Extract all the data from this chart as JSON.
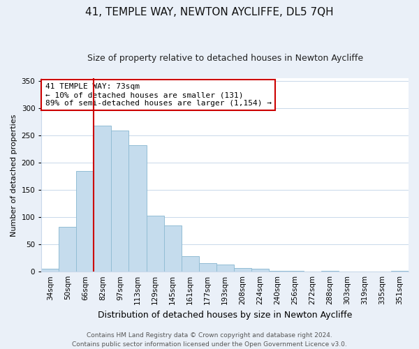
{
  "title": "41, TEMPLE WAY, NEWTON AYCLIFFE, DL5 7QH",
  "subtitle": "Size of property relative to detached houses in Newton Aycliffe",
  "xlabel": "Distribution of detached houses by size in Newton Aycliffe",
  "ylabel": "Number of detached properties",
  "bar_labels": [
    "34sqm",
    "50sqm",
    "66sqm",
    "82sqm",
    "97sqm",
    "113sqm",
    "129sqm",
    "145sqm",
    "161sqm",
    "177sqm",
    "193sqm",
    "208sqm",
    "224sqm",
    "240sqm",
    "256sqm",
    "272sqm",
    "288sqm",
    "303sqm",
    "319sqm",
    "335sqm",
    "351sqm"
  ],
  "bar_values": [
    6,
    82,
    185,
    268,
    260,
    233,
    103,
    85,
    28,
    16,
    13,
    7,
    5,
    2,
    2,
    0,
    2,
    0,
    0,
    0,
    2
  ],
  "bar_color": "#c5dced",
  "bar_edge_color": "#92bdd4",
  "vline_x": 2.5,
  "vline_color": "#cc0000",
  "ylim": [
    0,
    355
  ],
  "yticks": [
    0,
    50,
    100,
    150,
    200,
    250,
    300,
    350
  ],
  "annotation_text": "41 TEMPLE WAY: 73sqm\n← 10% of detached houses are smaller (131)\n89% of semi-detached houses are larger (1,154) →",
  "annotation_box_color": "white",
  "annotation_box_edge": "#cc0000",
  "footer_line1": "Contains HM Land Registry data © Crown copyright and database right 2024.",
  "footer_line2": "Contains public sector information licensed under the Open Government Licence v3.0.",
  "bg_color": "#eaf0f8",
  "plot_bg_color": "white",
  "grid_color": "#c8d8ea",
  "title_fontsize": 11,
  "subtitle_fontsize": 9,
  "xlabel_fontsize": 9,
  "ylabel_fontsize": 8,
  "tick_fontsize": 7.5,
  "annotation_fontsize": 8,
  "footer_fontsize": 6.5
}
